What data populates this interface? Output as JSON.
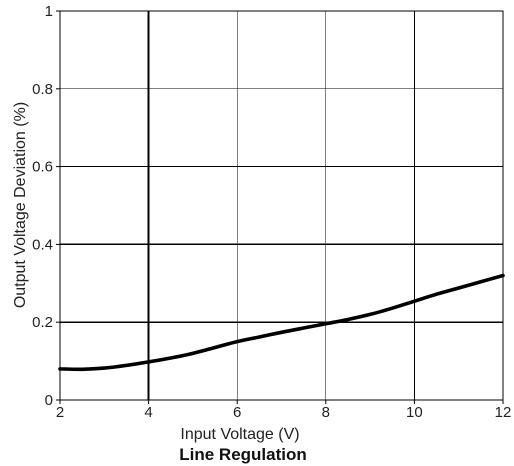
{
  "chart_data": {
    "type": "line",
    "title": "Line Regulation",
    "xlabel": "Input Voltage (V)",
    "ylabel": "Output Voltage Deviation (%)",
    "xlim": [
      2,
      12
    ],
    "ylim": [
      0,
      1
    ],
    "xticks": [
      2,
      4,
      6,
      8,
      10,
      12
    ],
    "yticks": [
      0,
      0.2,
      0.4,
      0.6,
      0.8,
      1
    ],
    "ytick_labels": [
      "0",
      "0.2",
      "0.4",
      "0.6",
      "0.8",
      "1"
    ],
    "grid": true,
    "series": [
      {
        "x": [
          2,
          2.5,
          3,
          3.5,
          4,
          4.5,
          5,
          5.5,
          6,
          6.5,
          7,
          7.5,
          8,
          8.5,
          9,
          9.5,
          10,
          10.5,
          11,
          11.5,
          12
        ],
        "y": [
          0.08,
          0.079,
          0.082,
          0.089,
          0.098,
          0.108,
          0.12,
          0.135,
          0.15,
          0.162,
          0.174,
          0.185,
          0.196,
          0.207,
          0.22,
          0.236,
          0.254,
          0.272,
          0.288,
          0.304,
          0.32
        ],
        "color": "#000000"
      }
    ]
  },
  "colors": {
    "line": "#000000",
    "grid": "#000000",
    "text": "#222222"
  }
}
